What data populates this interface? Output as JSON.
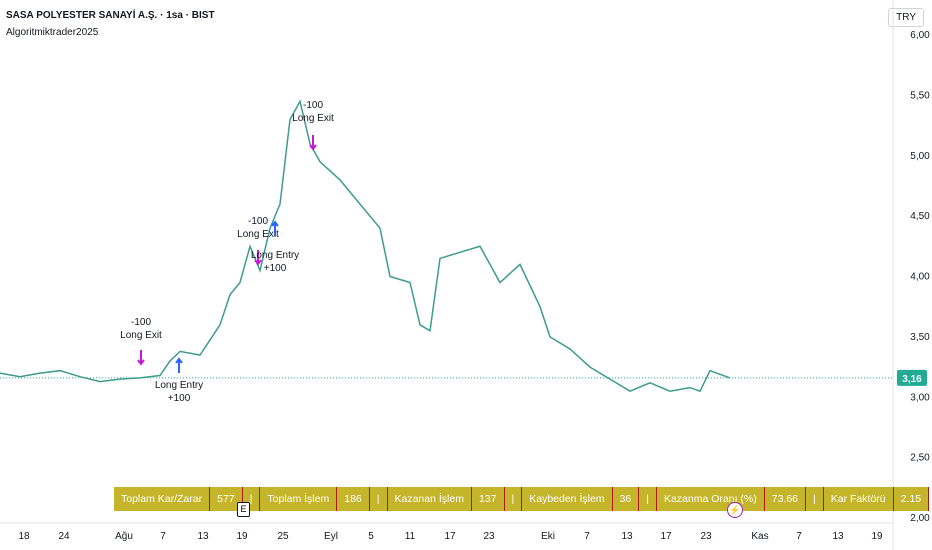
{
  "header": {
    "title": "SASA POLYESTER SANAYİ A.Ş. · 1sa · BIST",
    "subtitle": "Algoritmiktrader2025",
    "currency": "TRY"
  },
  "chart_data": {
    "type": "line",
    "x": [
      0,
      2,
      4,
      6,
      8,
      10,
      12,
      14,
      16,
      17,
      18,
      20,
      22,
      23,
      24,
      25,
      26,
      27,
      28,
      29,
      30,
      31,
      32,
      34,
      36,
      38,
      39,
      41,
      42,
      43,
      44,
      46,
      48,
      50,
      52,
      54,
      55,
      57,
      59,
      61,
      63,
      65,
      67,
      69,
      70,
      71,
      73
    ],
    "series": [
      {
        "name": "SASA",
        "color": "#3f9b8c",
        "values": [
          3.2,
          3.17,
          3.2,
          3.22,
          3.17,
          3.13,
          3.15,
          3.16,
          3.18,
          3.3,
          3.38,
          3.35,
          3.6,
          3.85,
          3.95,
          4.25,
          4.05,
          4.4,
          4.6,
          5.3,
          5.45,
          5.1,
          4.95,
          4.8,
          4.6,
          4.4,
          4.0,
          3.95,
          3.6,
          3.55,
          4.15,
          4.2,
          4.25,
          3.95,
          4.1,
          3.75,
          3.5,
          3.4,
          3.25,
          3.15,
          3.05,
          3.12,
          3.05,
          3.08,
          3.05,
          3.22,
          3.16
        ]
      }
    ],
    "xlim": [
      0,
      89
    ],
    "xticks": [
      {
        "value": 2.4,
        "label": "18"
      },
      {
        "value": 6.4,
        "label": "24"
      },
      {
        "value": 12.4,
        "label": "Ağu"
      },
      {
        "value": 16.3,
        "label": "7"
      },
      {
        "value": 20.3,
        "label": "13"
      },
      {
        "value": 24.2,
        "label": "19"
      },
      {
        "value": 28.3,
        "label": "25"
      },
      {
        "value": 33.1,
        "label": "Eyl"
      },
      {
        "value": 37.1,
        "label": "5"
      },
      {
        "value": 41,
        "label": "11"
      },
      {
        "value": 45,
        "label": "17"
      },
      {
        "value": 48.9,
        "label": "23"
      },
      {
        "value": 54.8,
        "label": "Eki"
      },
      {
        "value": 58.7,
        "label": "7"
      },
      {
        "value": 62.7,
        "label": "13"
      },
      {
        "value": 66.6,
        "label": "17"
      },
      {
        "value": 70.6,
        "label": "23"
      },
      {
        "value": 76,
        "label": "Kas"
      },
      {
        "value": 79.9,
        "label": "7"
      },
      {
        "value": 83.8,
        "label": "13"
      },
      {
        "value": 87.7,
        "label": "19"
      }
    ],
    "ylim": [
      2.0,
      6.0
    ],
    "yticks": [
      {
        "value": 2.0,
        "label": "2,00"
      },
      {
        "value": 2.5,
        "label": "2,50"
      },
      {
        "value": 3.0,
        "label": "3,00"
      },
      {
        "value": 3.5,
        "label": "3,50"
      },
      {
        "value": 4.0,
        "label": "4,00"
      },
      {
        "value": 4.5,
        "label": "4,50"
      },
      {
        "value": 5.0,
        "label": "5,00"
      },
      {
        "value": 5.5,
        "label": "5,50"
      },
      {
        "value": 6.0,
        "label": "6,00"
      }
    ],
    "last_price": {
      "value": 3.16,
      "label": "3,16"
    },
    "grid": false,
    "annotations": [
      {
        "qty": "-100",
        "signal": "Long Exit",
        "kind": "exit"
      },
      {
        "qty": "+100",
        "signal": "Long Entry",
        "kind": "entry"
      },
      {
        "qty": "-100",
        "signal": "Long Exit",
        "kind": "exit"
      },
      {
        "qty": "+100",
        "signal": "Long Entry",
        "kind": "entry"
      },
      {
        "qty": "-100",
        "signal": "Long Exit",
        "kind": "exit"
      }
    ]
  },
  "earnings_marker": "E",
  "stats": {
    "separator": "|",
    "rows": [
      [
        "Toplam Kar/Zarar",
        577
      ],
      [
        "Toplam İşlem",
        186
      ],
      [
        "Kazanan İşlem",
        137
      ],
      [
        "Kaybeden İşlem",
        36
      ],
      [
        "Kazanma Oranı (%)",
        73.66
      ],
      [
        "Kar Faktörü",
        2.15
      ]
    ]
  }
}
